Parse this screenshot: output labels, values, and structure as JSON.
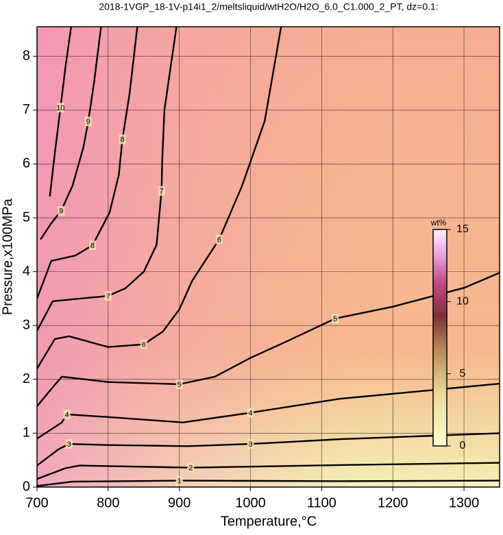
{
  "chart_data": {
    "type": "contour",
    "title": "2018-1VGP_18-1V-p14i1_2/meltsliquid/wtH2O/H2O_6.0_C1.000_2_PT, dz=0.1:",
    "x_label": "Temperature,°C",
    "y_label": "Pressure,x100MPa",
    "xlim": [
      700,
      1350
    ],
    "ylim": [
      0,
      8.55
    ],
    "xticks": [
      700,
      800,
      900,
      1000,
      1100,
      1200,
      1300
    ],
    "yticks": [
      0,
      1,
      2,
      3,
      4,
      5,
      6,
      7,
      8
    ],
    "grid": true,
    "color": "#000000",
    "colorbar": {
      "label": "wt%",
      "lim": [
        0,
        15
      ],
      "ticks": [
        0,
        5,
        10,
        15
      ]
    },
    "contours": [
      {
        "level": 1,
        "x": [
          700,
          750,
          900,
          1130,
          1350
        ],
        "y": [
          0.02,
          0.1,
          0.12,
          0.11,
          0.12
        ]
      },
      {
        "level": 2,
        "x": [
          700,
          740,
          760,
          916,
          1131,
          1350
        ],
        "y": [
          0.15,
          0.35,
          0.4,
          0.36,
          0.41,
          0.45
        ]
      },
      {
        "level": 3,
        "x": [
          700,
          730,
          745,
          800,
          912,
          1000,
          1128,
          1350
        ],
        "y": [
          0.4,
          0.7,
          0.8,
          0.78,
          0.76,
          0.8,
          0.89,
          1.0
        ]
      },
      {
        "level": 4,
        "x": [
          700,
          735,
          742,
          800,
          905,
          1000,
          1126,
          1350
        ],
        "y": [
          0.9,
          1.2,
          1.35,
          1.3,
          1.2,
          1.38,
          1.64,
          1.92
        ]
      },
      {
        "level": 5,
        "x": [
          700,
          725,
          735,
          800,
          900,
          950,
          1000,
          1050,
          1119,
          1200,
          1300,
          1350
        ],
        "y": [
          1.5,
          1.9,
          2.05,
          1.95,
          1.91,
          2.05,
          2.4,
          2.7,
          3.13,
          3.35,
          3.7,
          3.98
        ]
      },
      {
        "level": 6,
        "x": [
          700,
          725,
          745,
          800,
          850,
          877,
          900,
          918,
          956,
          988,
          1020,
          1043
        ],
        "y": [
          2.2,
          2.75,
          2.8,
          2.6,
          2.65,
          2.89,
          3.3,
          3.83,
          4.6,
          5.59,
          6.8,
          8.55
        ]
      },
      {
        "level": 7,
        "x": [
          700,
          722,
          760,
          800,
          824,
          850,
          868,
          875,
          876,
          879,
          896
        ],
        "y": [
          2.9,
          3.45,
          3.5,
          3.55,
          3.69,
          4.0,
          4.5,
          5.5,
          6.1,
          7.0,
          8.55
        ]
      },
      {
        "level": 8,
        "x": [
          700,
          720,
          754,
          778,
          802,
          815,
          820,
          830,
          841
        ],
        "y": [
          3.5,
          4.2,
          4.3,
          4.49,
          5.1,
          5.8,
          6.46,
          7.3,
          8.55
        ]
      },
      {
        "level": 9,
        "x": [
          705,
          720,
          734,
          750,
          765,
          772,
          780,
          790
        ],
        "y": [
          4.6,
          4.9,
          5.13,
          5.6,
          6.3,
          6.79,
          7.5,
          8.55
        ]
      },
      {
        "level": 10,
        "x": [
          718,
          725,
          733,
          740,
          748
        ],
        "y": [
          5.4,
          6.2,
          7.05,
          7.8,
          8.55
        ]
      }
    ]
  }
}
